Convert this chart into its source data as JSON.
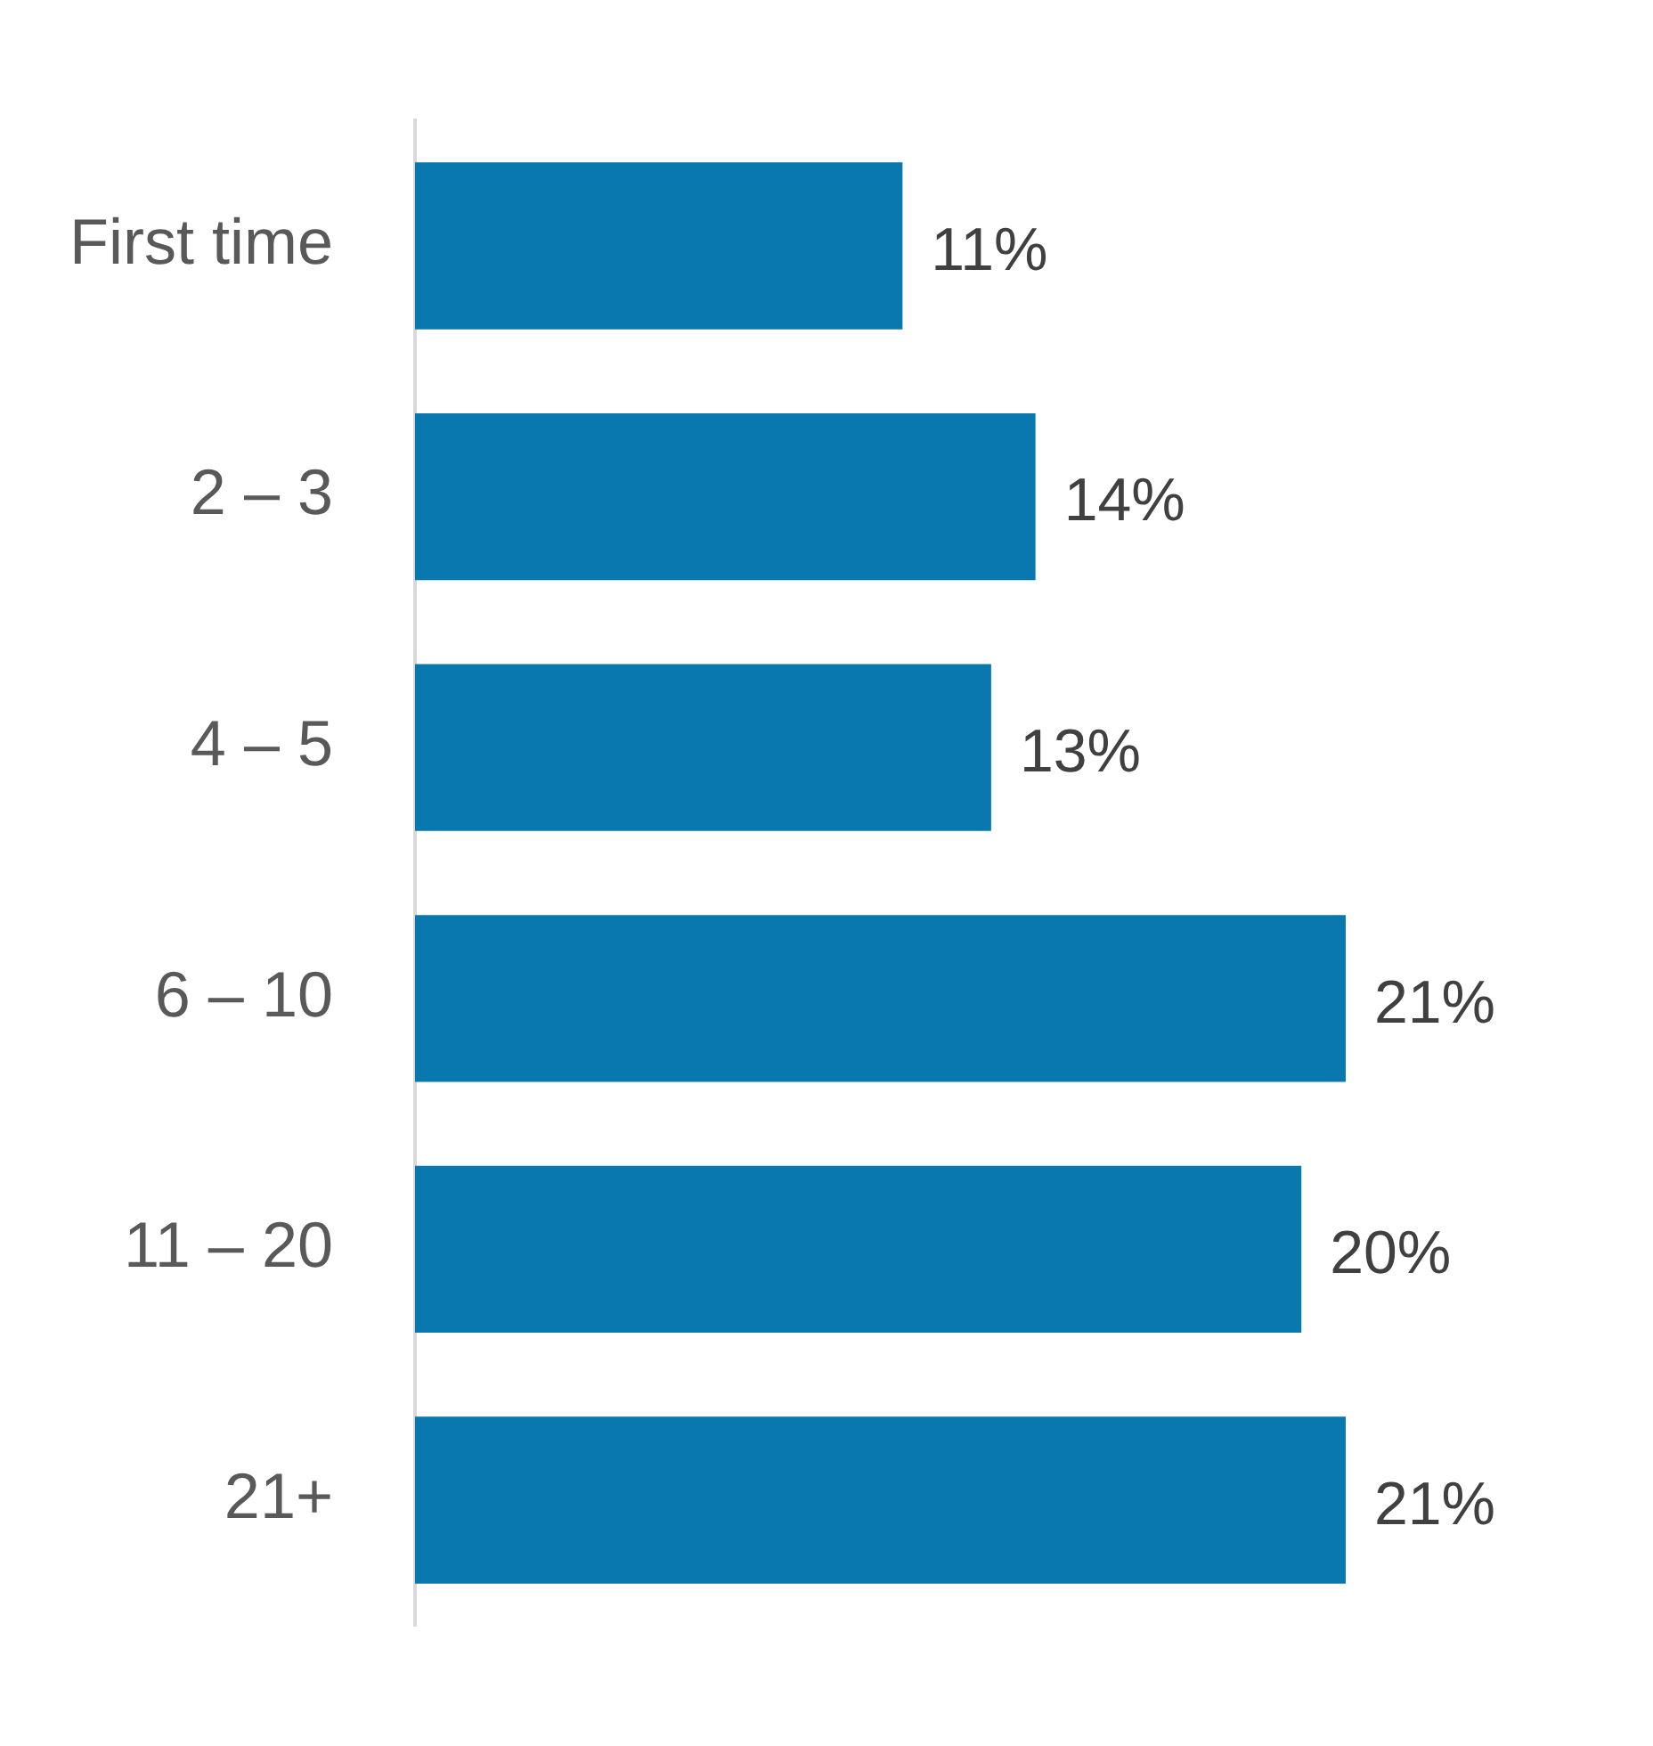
{
  "chart_data": {
    "type": "bar",
    "orientation": "horizontal",
    "categories": [
      "First time",
      "2 – 3",
      "4 – 5",
      "6 – 10",
      "11 – 20",
      "21+"
    ],
    "values": [
      11,
      14,
      13,
      21,
      20,
      21
    ],
    "value_labels": [
      "11%",
      "14%",
      "13%",
      "21%",
      "20%",
      "21%"
    ],
    "color": "#0878ae",
    "tick_labels": "y"
  }
}
